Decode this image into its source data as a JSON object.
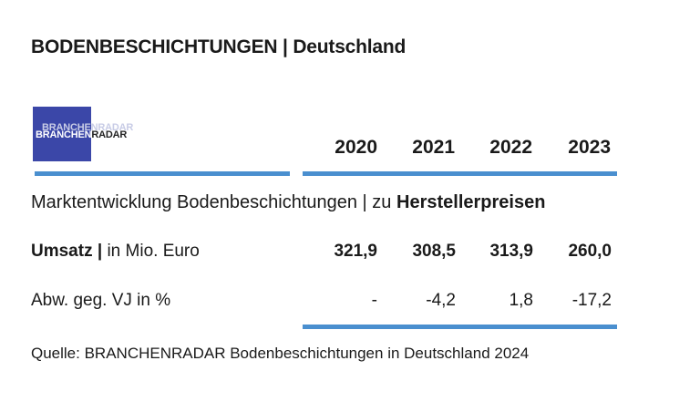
{
  "title": "BODENBESCHICHTUNGEN | Deutschland",
  "logo": {
    "part1": "BRANCHEN",
    "part2": "RADAR",
    "color": "#3b47a8"
  },
  "years": [
    "2020",
    "2021",
    "2022",
    "2023"
  ],
  "subtitle": {
    "prefix": "Marktentwicklung Bodenbeschichtungen | zu ",
    "emphasis": "Herstellerpreisen"
  },
  "rows": [
    {
      "label_bold": "Umsatz |",
      "label": " in Mio. Euro",
      "values": [
        "321,9",
        "308,5",
        "313,9",
        "260,0"
      ]
    },
    {
      "label_bold": "",
      "label": "Abw. geg. VJ in %",
      "values": [
        "-",
        "-4,2",
        "1,8",
        "-17,2"
      ]
    }
  ],
  "source": "Quelle: BRANCHENRADAR Bodenbeschichtungen in Deutschland 2024",
  "accent_color": "#4a8fcf"
}
